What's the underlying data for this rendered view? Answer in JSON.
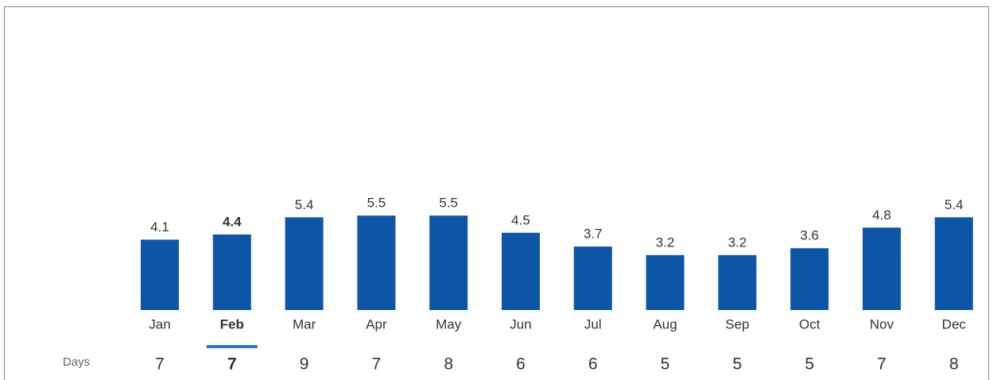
{
  "chart_data": {
    "type": "bar",
    "categories": [
      "Jan",
      "Feb",
      "Mar",
      "Apr",
      "May",
      "Jun",
      "Jul",
      "Aug",
      "Sep",
      "Oct",
      "Nov",
      "Dec"
    ],
    "values": [
      4.1,
      4.4,
      5.4,
      5.5,
      5.5,
      4.5,
      3.7,
      3.2,
      3.2,
      3.6,
      4.8,
      5.4
    ],
    "color": "#0d56a6",
    "selected": "Feb",
    "days": {
      "label": "Days",
      "values": [
        7,
        7,
        9,
        7,
        8,
        6,
        6,
        5,
        5,
        5,
        7,
        8
      ]
    }
  }
}
